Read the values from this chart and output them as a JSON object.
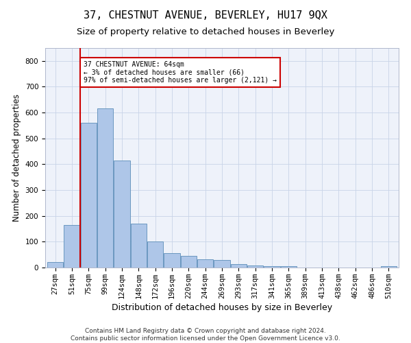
{
  "title": "37, CHESTNUT AVENUE, BEVERLEY, HU17 9QX",
  "subtitle": "Size of property relative to detached houses in Beverley",
  "xlabel": "Distribution of detached houses by size in Beverley",
  "ylabel": "Number of detached properties",
  "categories": [
    "27sqm",
    "51sqm",
    "75sqm",
    "99sqm",
    "124sqm",
    "148sqm",
    "172sqm",
    "196sqm",
    "220sqm",
    "244sqm",
    "269sqm",
    "293sqm",
    "317sqm",
    "341sqm",
    "365sqm",
    "389sqm",
    "413sqm",
    "438sqm",
    "462sqm",
    "486sqm",
    "510sqm"
  ],
  "values": [
    20,
    165,
    560,
    615,
    415,
    170,
    102,
    55,
    44,
    32,
    30,
    14,
    8,
    5,
    4,
    0,
    0,
    0,
    0,
    0,
    5
  ],
  "bar_color": "#aec6e8",
  "bar_edge_color": "#5b8db8",
  "property_line_x": 1.5,
  "property_line_color": "#cc0000",
  "annotation_text": "37 CHESTNUT AVENUE: 64sqm\n← 3% of detached houses are smaller (66)\n97% of semi-detached houses are larger (2,121) →",
  "annotation_box_color": "#ffffff",
  "annotation_box_edge_color": "#cc0000",
  "ylim": [
    0,
    850
  ],
  "yticks": [
    0,
    100,
    200,
    300,
    400,
    500,
    600,
    700,
    800
  ],
  "bg_color": "#eef2fa",
  "footer_text": "Contains HM Land Registry data © Crown copyright and database right 2024.\nContains public sector information licensed under the Open Government Licence v3.0.",
  "title_fontsize": 11,
  "subtitle_fontsize": 9.5,
  "xlabel_fontsize": 9,
  "ylabel_fontsize": 8.5,
  "tick_fontsize": 7.5,
  "footer_fontsize": 6.5
}
